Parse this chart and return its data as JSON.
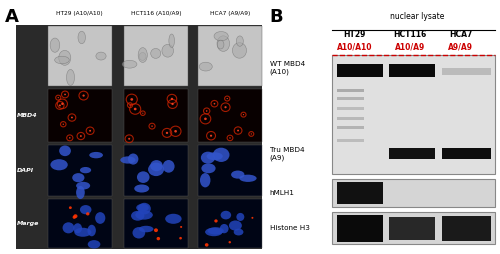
{
  "fig_width": 5.0,
  "fig_height": 2.54,
  "dpi": 100,
  "bg_color": "#ffffff",
  "panel_A_label": "A",
  "panel_B_label": "B",
  "col_headers": [
    "HT29 (A10/A10)",
    "HCT116 (A10/A9)",
    "HCA7 (A9/A9)"
  ],
  "row_labels_A": [
    "MBD4",
    "DAPI",
    "Marge"
  ],
  "nuclear_lysate_label": "nuclear lysate",
  "blot_col_labels_black": [
    "HT29",
    "HCT116",
    "HCA7"
  ],
  "blot_col_labels_red": [
    "A10/A10",
    "A10/A9",
    "A9/A9"
  ],
  "blot_row_labels": [
    "WT MBD4\n(A10)",
    "Tru MBD4\n(A9)",
    "hMLH1",
    "Histone H3"
  ],
  "label_color_black": "#000000",
  "label_color_red": "#cc0000",
  "panel_A_bg": "#2a2a2a",
  "micro_bg_light": "#c8c8c8",
  "micro_bg_red": "#080000",
  "micro_bg_blue": "#000515",
  "blot_bg1": "#d8d8d8",
  "blot_bg2": "#c8c8c8",
  "blot_bg3": "#c0c0c0"
}
